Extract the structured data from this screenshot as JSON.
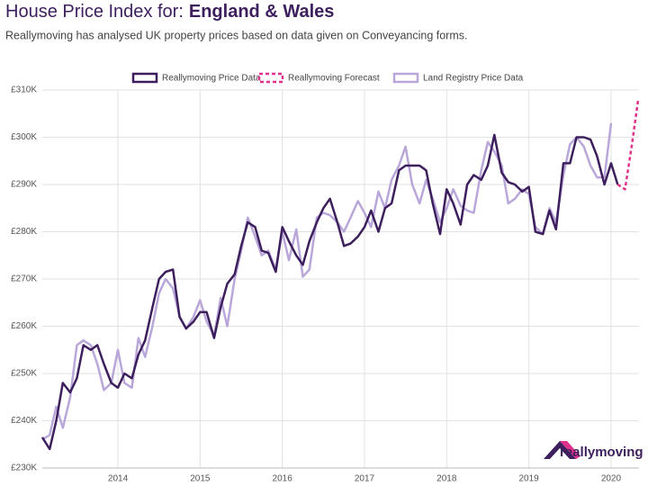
{
  "chart_data": {
    "type": "line",
    "title": "House Price Index for:",
    "title_region": "England & Wales",
    "subtitle": "Reallymoving has analysed UK property prices based on data given on Conveyancing forms.",
    "logo": "reallymoving",
    "xlim": [
      2013.08,
      2020.34
    ],
    "xticks": [
      2014,
      2015,
      2016,
      2017,
      2018,
      2019,
      2020
    ],
    "ylim": [
      230,
      310
    ],
    "yticks": [
      {
        "value": 230,
        "label": "£230K"
      },
      {
        "value": 240,
        "label": "£240K"
      },
      {
        "value": 250,
        "label": "£250K"
      },
      {
        "value": 260,
        "label": "£260K"
      },
      {
        "value": 270,
        "label": "£270K"
      },
      {
        "value": 280,
        "label": "£280K"
      },
      {
        "value": 290,
        "label": "£290K"
      },
      {
        "value": 300,
        "label": "£300K"
      },
      {
        "value": 310,
        "label": "£310K"
      }
    ],
    "grid": true,
    "legend": "top",
    "series": [
      {
        "name": "Reallymoving Price Data",
        "color": "#3d1f5e",
        "dash": false,
        "x": [
          2013.08,
          2013.17,
          2013.25,
          2013.33,
          2013.42,
          2013.5,
          2013.58,
          2013.67,
          2013.75,
          2013.83,
          2013.92,
          2014,
          2014.08,
          2014.17,
          2014.25,
          2014.33,
          2014.42,
          2014.5,
          2014.58,
          2014.67,
          2014.75,
          2014.83,
          2014.92,
          2015,
          2015.08,
          2015.17,
          2015.25,
          2015.33,
          2015.42,
          2015.5,
          2015.58,
          2015.67,
          2015.75,
          2015.83,
          2015.92,
          2016,
          2016.08,
          2016.17,
          2016.25,
          2016.33,
          2016.42,
          2016.5,
          2016.58,
          2016.67,
          2016.75,
          2016.83,
          2016.92,
          2017,
          2017.08,
          2017.17,
          2017.25,
          2017.33,
          2017.42,
          2017.5,
          2017.58,
          2017.67,
          2017.75,
          2017.83,
          2017.92,
          2018,
          2018.08,
          2018.17,
          2018.25,
          2018.33,
          2018.42,
          2018.5,
          2018.58,
          2018.67,
          2018.75,
          2018.83,
          2018.92,
          2019,
          2019.08,
          2019.17,
          2019.25,
          2019.33,
          2019.42,
          2019.5,
          2019.58,
          2019.67,
          2019.75,
          2019.83,
          2019.92,
          2020,
          2020.08
        ],
        "values": [
          236.5,
          234,
          240,
          248,
          246,
          249,
          256,
          255,
          256,
          252,
          248,
          247,
          250,
          249,
          254,
          257,
          264,
          270,
          271.5,
          272,
          262,
          259.5,
          261,
          263,
          263,
          257.5,
          264,
          269,
          271,
          277,
          282,
          281,
          276,
          275.5,
          271.5,
          281,
          278,
          275,
          273,
          278,
          282,
          285,
          287,
          282,
          277,
          277.5,
          279,
          281,
          284.5,
          280,
          285,
          286,
          293,
          294,
          294,
          294,
          293,
          286,
          279.5,
          289,
          286,
          281.5,
          290,
          292,
          291,
          294,
          300.5,
          292.5,
          290.5,
          290,
          288.5,
          289.5,
          280,
          279.5,
          284.5,
          280.5,
          294.5,
          294.5,
          300,
          300,
          299.5,
          296,
          290,
          294.5,
          290
        ]
      },
      {
        "name": "Reallymoving Forecast",
        "color": "#e0318a",
        "dash": true,
        "x": [
          2020.08,
          2020.17,
          2020.25,
          2020.33
        ],
        "values": [
          290,
          289,
          298,
          308
        ]
      },
      {
        "name": "Land Registry Price Data",
        "color": "#b9a7da",
        "dash": false,
        "x": [
          2013.08,
          2013.17,
          2013.25,
          2013.33,
          2013.42,
          2013.5,
          2013.58,
          2013.67,
          2013.75,
          2013.83,
          2013.92,
          2014,
          2014.08,
          2014.17,
          2014.25,
          2014.33,
          2014.42,
          2014.5,
          2014.58,
          2014.67,
          2014.75,
          2014.83,
          2014.92,
          2015,
          2015.08,
          2015.17,
          2015.25,
          2015.33,
          2015.42,
          2015.5,
          2015.58,
          2015.67,
          2015.75,
          2015.83,
          2015.92,
          2016,
          2016.08,
          2016.17,
          2016.25,
          2016.33,
          2016.42,
          2016.5,
          2016.58,
          2016.67,
          2016.75,
          2016.83,
          2016.92,
          2017,
          2017.08,
          2017.17,
          2017.25,
          2017.33,
          2017.42,
          2017.5,
          2017.58,
          2017.67,
          2017.75,
          2017.83,
          2017.92,
          2018,
          2018.08,
          2018.17,
          2018.25,
          2018.33,
          2018.42,
          2018.5,
          2018.58,
          2018.67,
          2018.75,
          2018.83,
          2018.92,
          2019,
          2019.08,
          2019.17,
          2019.25,
          2019.33,
          2019.42,
          2019.5,
          2019.58,
          2019.67,
          2019.75,
          2019.83,
          2019.92,
          2020
        ],
        "values": [
          236,
          237,
          243,
          238.5,
          245,
          256,
          257,
          256,
          252,
          246.5,
          248,
          255,
          248,
          247,
          257.5,
          253.5,
          260,
          267,
          270,
          268,
          262,
          259.5,
          262,
          265.5,
          261,
          258,
          266,
          260,
          270,
          276,
          283,
          279,
          275,
          276,
          272,
          280,
          274,
          280.5,
          270.5,
          272,
          283,
          284,
          283.5,
          282,
          280,
          283,
          286.5,
          284,
          281,
          288.5,
          285,
          291,
          294,
          298,
          290,
          286,
          291,
          287,
          282,
          285,
          289,
          285.5,
          284.5,
          284,
          293,
          299,
          297,
          294,
          286,
          287,
          289,
          288,
          281,
          279.5,
          285,
          282,
          292,
          298.5,
          300,
          298,
          294,
          291.5,
          291.5,
          303
        ]
      }
    ]
  }
}
